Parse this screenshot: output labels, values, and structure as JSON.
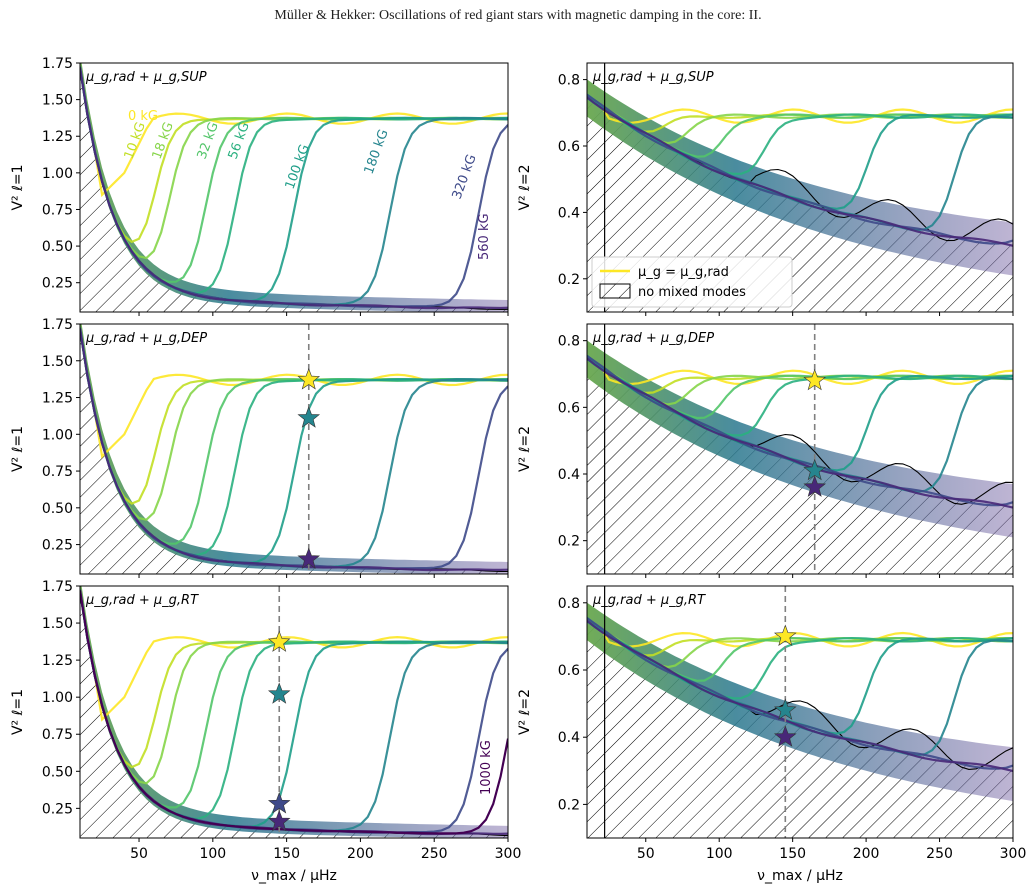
{
  "header": "Müller & Hekker: Oscillations of red giant stars with magnetic damping in the core: II.",
  "xlabel": "ν_max / μHz",
  "colors": {
    "field_0": "#fde725",
    "field_10": "#c2df23",
    "field_18": "#86d549",
    "field_32": "#52c569",
    "field_56": "#2ab07f",
    "field_100": "#1f9e89",
    "field_180": "#25858e",
    "field_320": "#3e4a89",
    "field_560": "#482878",
    "field_1000": "#440154",
    "hatch_line": "#000000",
    "vline": "#808080"
  },
  "legend": [
    {
      "label": "μ_g = μ_g,rad",
      "symbol": "yellow-line"
    },
    {
      "label": "no mixed modes",
      "symbol": "hatched-box"
    }
  ],
  "chart_data": [
    {
      "type": "line",
      "panel": "top-left",
      "annotation": "μ_g,rad + μ_g,SUP",
      "ylabel": "V² ℓ=1",
      "xlim": [
        10,
        300
      ],
      "ylim": [
        0.05,
        1.75
      ],
      "xticks": [
        50,
        100,
        150,
        200,
        250,
        300
      ],
      "yticks": [
        0.25,
        0.5,
        0.75,
        1.0,
        1.25,
        1.5,
        1.75
      ],
      "ytick_labels": [
        "0.25",
        "0.50",
        "0.75",
        "1.00",
        "1.25",
        "1.50",
        "1.75"
      ],
      "x_tick_labels_shown": false,
      "curve_labels": [
        {
          "text": "0 kG"
        },
        {
          "text": "10 kG"
        },
        {
          "text": "18 kG"
        },
        {
          "text": "32 kG"
        },
        {
          "text": "56 kG"
        },
        {
          "text": "100 kG"
        },
        {
          "text": "180 kG"
        },
        {
          "text": "320 kG"
        },
        {
          "text": "560 kG"
        }
      ],
      "series": [
        {
          "field": "0 kG",
          "x": [
            30,
            45,
            60,
            75,
            90,
            120,
            150,
            180,
            220,
            260,
            300
          ],
          "y": [
            1.38,
            0.95,
            1.2,
            1.35,
            1.4,
            1.38,
            1.37,
            1.4,
            1.36,
            1.33,
            1.3
          ]
        },
        {
          "field": "10 kG",
          "transition_x": 60
        },
        {
          "field": "18 kG",
          "transition_x": 70
        },
        {
          "field": "32 kG",
          "transition_x": 95
        },
        {
          "field": "56 kG",
          "transition_x": 115
        },
        {
          "field": "100 kG",
          "transition_x": 155
        },
        {
          "field": "180 kG",
          "transition_x": 220
        },
        {
          "field": "320 kG",
          "transition_x": 280
        },
        {
          "field": "560 kG",
          "transition_x": 310
        }
      ],
      "lower_envelope": {
        "x": [
          10,
          20,
          30,
          40,
          50,
          75,
          100,
          150,
          200,
          250,
          300
        ],
        "y": [
          1.55,
          1.2,
          0.85,
          0.62,
          0.5,
          0.33,
          0.22,
          0.15,
          0.12,
          0.1,
          0.09
        ]
      }
    },
    {
      "type": "line",
      "panel": "top-right",
      "annotation": "μ_g,rad + μ_g,SUP",
      "ylabel": "V² ℓ=2",
      "xlim": [
        10,
        300
      ],
      "ylim": [
        0.1,
        0.85
      ],
      "xticks": [
        50,
        100,
        150,
        200,
        250,
        300
      ],
      "yticks": [
        0.2,
        0.4,
        0.6,
        0.8
      ],
      "ytick_labels": [
        "0.2",
        "0.4",
        "0.6",
        "0.8"
      ],
      "x_tick_labels_shown": false,
      "legend_placement": "center-left"
    },
    {
      "type": "line",
      "panel": "middle-left",
      "annotation": "μ_g,rad + μ_g,DEP",
      "ylabel": "V² ℓ=1",
      "xlim": [
        10,
        300
      ],
      "ylim": [
        0.05,
        1.75
      ],
      "yticks": [
        0.25,
        0.5,
        0.75,
        1.0,
        1.25,
        1.5,
        1.75
      ],
      "ytick_labels": [
        "0.25",
        "0.50",
        "0.75",
        "1.00",
        "1.25",
        "1.50",
        "1.75"
      ],
      "x_tick_labels_shown": false,
      "vline_x": 165,
      "stars": [
        {
          "x": 165,
          "y": 1.37,
          "color": "#fde725"
        },
        {
          "x": 165,
          "y": 1.11,
          "color": "#25858e"
        },
        {
          "x": 165,
          "y": 0.15,
          "color": "#482878"
        }
      ]
    },
    {
      "type": "line",
      "panel": "middle-right",
      "annotation": "μ_g,rad + μ_g,DEP",
      "ylabel": "V² ℓ=2",
      "xlim": [
        10,
        300
      ],
      "ylim": [
        0.1,
        0.85
      ],
      "yticks": [
        0.2,
        0.4,
        0.6,
        0.8
      ],
      "ytick_labels": [
        "0.2",
        "0.4",
        "0.6",
        "0.8"
      ],
      "x_tick_labels_shown": false,
      "vline_x": 165,
      "stars": [
        {
          "x": 165,
          "y": 0.68,
          "color": "#fde725"
        },
        {
          "x": 165,
          "y": 0.41,
          "color": "#25858e"
        },
        {
          "x": 165,
          "y": 0.36,
          "color": "#482878"
        }
      ]
    },
    {
      "type": "line",
      "panel": "bottom-left",
      "annotation": "μ_g,rad + μ_g,RT",
      "ylabel": "V² ℓ=1",
      "xlim": [
        10,
        300
      ],
      "ylim": [
        0.05,
        1.75
      ],
      "xticks": [
        50,
        100,
        150,
        200,
        250,
        300
      ],
      "xtick_labels": [
        "50",
        "100",
        "150",
        "200",
        "250",
        "300"
      ],
      "yticks": [
        0.25,
        0.5,
        0.75,
        1.0,
        1.25,
        1.5,
        1.75
      ],
      "ytick_labels": [
        "0.25",
        "0.50",
        "0.75",
        "1.00",
        "1.25",
        "1.50",
        "1.75"
      ],
      "curve_labels": [
        {
          "text": "1000 kG"
        }
      ],
      "vline_x": 145,
      "stars": [
        {
          "x": 145,
          "y": 1.37,
          "color": "#fde725"
        },
        {
          "x": 145,
          "y": 1.02,
          "color": "#25858e"
        },
        {
          "x": 145,
          "y": 0.28,
          "color": "#3e4a89"
        },
        {
          "x": 145,
          "y": 0.16,
          "color": "#482878"
        }
      ]
    },
    {
      "type": "line",
      "panel": "bottom-right",
      "annotation": "μ_g,rad + μ_g,RT",
      "ylabel": "V² ℓ=2",
      "xlim": [
        10,
        300
      ],
      "ylim": [
        0.1,
        0.85
      ],
      "xticks": [
        50,
        100,
        150,
        200,
        250,
        300
      ],
      "xtick_labels": [
        "50",
        "100",
        "150",
        "200",
        "250",
        "300"
      ],
      "yticks": [
        0.2,
        0.4,
        0.6,
        0.8
      ],
      "ytick_labels": [
        "0.2",
        "0.4",
        "0.6",
        "0.8"
      ],
      "vline_x": 145,
      "stars": [
        {
          "x": 145,
          "y": 0.7,
          "color": "#fde725"
        },
        {
          "x": 145,
          "y": 0.48,
          "color": "#25858e"
        },
        {
          "x": 145,
          "y": 0.4,
          "color": "#482878"
        }
      ]
    }
  ]
}
